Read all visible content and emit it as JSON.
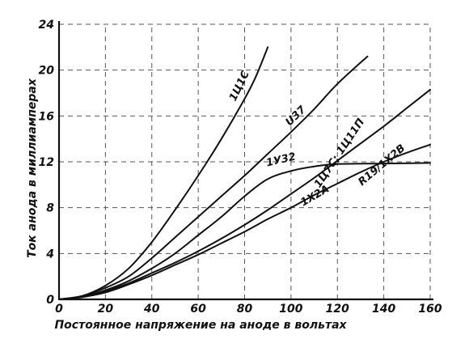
{
  "chart_data": {
    "type": "line",
    "xlabel": "Постоянное напряжение на аноде в вольтах",
    "ylabel": "Ток анода в миллиамперах",
    "xlim": [
      0,
      160
    ],
    "ylim": [
      0,
      24
    ],
    "x_ticks": [
      "0",
      "20",
      "40",
      "60",
      "80",
      "100",
      "120",
      "140",
      "160"
    ],
    "y_ticks": [
      "0",
      "4",
      "8",
      "12",
      "16",
      "20",
      "24"
    ],
    "grid": "dashed",
    "legend": "none (curves labeled directly)",
    "colors": {
      "ink": "#111111",
      "grid": "#555555",
      "background": "#ffffff"
    },
    "series": [
      {
        "name": "1Ц1С",
        "points": [
          [
            0,
            0
          ],
          [
            10,
            0.3
          ],
          [
            20,
            1.2
          ],
          [
            30,
            2.7
          ],
          [
            40,
            5.0
          ],
          [
            50,
            7.8
          ],
          [
            60,
            10.8
          ],
          [
            70,
            14.0
          ],
          [
            80,
            17.5
          ],
          [
            85,
            19.5
          ],
          [
            90,
            22.0
          ]
        ]
      },
      {
        "name": "U37",
        "points": [
          [
            0,
            0
          ],
          [
            10,
            0.3
          ],
          [
            20,
            1.0
          ],
          [
            30,
            2.0
          ],
          [
            40,
            3.6
          ],
          [
            50,
            5.4
          ],
          [
            60,
            7.2
          ],
          [
            70,
            9.0
          ],
          [
            80,
            10.8
          ],
          [
            90,
            12.7
          ],
          [
            100,
            14.6
          ],
          [
            110,
            16.6
          ],
          [
            120,
            18.8
          ],
          [
            133,
            21.2
          ]
        ]
      },
      {
        "name": "1У32",
        "points": [
          [
            0,
            0
          ],
          [
            10,
            0.25
          ],
          [
            20,
            0.8
          ],
          [
            30,
            1.6
          ],
          [
            40,
            2.7
          ],
          [
            50,
            4.0
          ],
          [
            60,
            5.6
          ],
          [
            70,
            7.2
          ],
          [
            80,
            9.0
          ],
          [
            90,
            10.5
          ],
          [
            100,
            11.2
          ],
          [
            110,
            11.6
          ],
          [
            120,
            11.8
          ],
          [
            140,
            11.85
          ],
          [
            160,
            11.9
          ]
        ]
      },
      {
        "name": "1Ц7С; 1Ц11П",
        "points": [
          [
            0,
            0
          ],
          [
            10,
            0.2
          ],
          [
            20,
            0.7
          ],
          [
            30,
            1.4
          ],
          [
            40,
            2.3
          ],
          [
            50,
            3.2
          ],
          [
            60,
            4.2
          ],
          [
            70,
            5.3
          ],
          [
            80,
            6.5
          ],
          [
            90,
            7.8
          ],
          [
            100,
            9.2
          ],
          [
            110,
            10.6
          ],
          [
            120,
            12.1
          ],
          [
            130,
            13.6
          ],
          [
            140,
            15.1
          ],
          [
            150,
            16.7
          ],
          [
            160,
            18.3
          ]
        ]
      },
      {
        "name": "1Х2А",
        "points": [
          [
            0,
            0
          ],
          [
            10,
            0.2
          ],
          [
            20,
            0.6
          ],
          [
            30,
            1.3
          ],
          [
            40,
            2.1
          ],
          [
            50,
            3.0
          ],
          [
            60,
            3.9
          ],
          [
            70,
            4.9
          ],
          [
            80,
            5.9
          ],
          [
            90,
            7.0
          ],
          [
            100,
            8.0
          ],
          [
            110,
            9.1
          ],
          [
            120,
            10.1
          ],
          [
            130,
            11.1
          ],
          [
            140,
            12.0
          ],
          [
            150,
            12.8
          ],
          [
            160,
            13.5
          ]
        ]
      }
    ],
    "curve_labels": [
      {
        "text": "1Ц1С",
        "x": 79,
        "y": 18.5,
        "rotate": -64
      },
      {
        "text": "U37",
        "x": 103,
        "y": 15.8,
        "rotate": -44
      },
      {
        "text": "1У32",
        "x": 96,
        "y": 11.9,
        "rotate": -13
      },
      {
        "text": "1Ц7С; 1Ц11П",
        "x": 122,
        "y": 12.6,
        "rotate": -56
      },
      {
        "text": "R19/1Х2В",
        "x": 140,
        "y": 11.5,
        "rotate": -40
      },
      {
        "text": "1Х2А",
        "x": 111,
        "y": 8.8,
        "rotate": -30
      }
    ]
  }
}
